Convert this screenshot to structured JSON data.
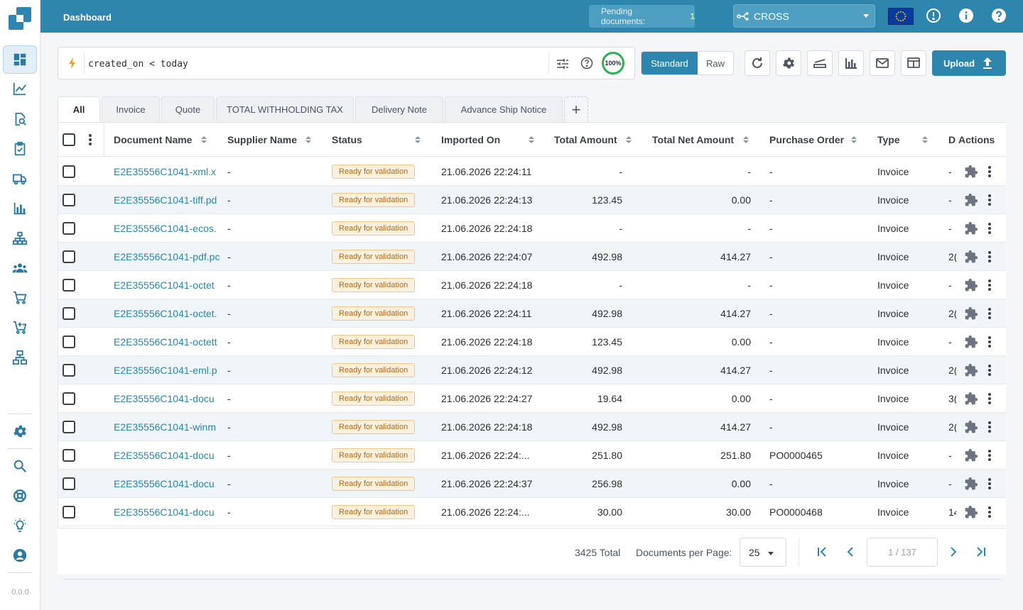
{
  "header": {
    "title": "Dashboard",
    "pending_label": "Pending documents:",
    "pending_count": "1",
    "tenant": "CROSS"
  },
  "sidebar": {
    "items": [
      "dashboard",
      "analytics",
      "document-search",
      "validation",
      "delivery",
      "reports",
      "organization",
      "users",
      "cart",
      "add-to-cart",
      "network"
    ],
    "bottom_items": [
      "settings",
      "search",
      "support",
      "ideas",
      "account"
    ],
    "version": "0.0.0"
  },
  "query": {
    "value": "created_on < today",
    "accuracy": "100%"
  },
  "view_mode": {
    "standard": "Standard",
    "raw": "Raw"
  },
  "toolbar": {
    "upload_label": "Upload"
  },
  "tabs": [
    "All",
    "Invoice",
    "Quote",
    "TOTAL WITHHOLDING TAX",
    "Delivery Note",
    "Advance Ship Notice"
  ],
  "columns": {
    "document_name": "Document Name",
    "supplier_name": "Supplier Name",
    "status": "Status",
    "imported_on": "Imported On",
    "total_amount": "Total Amount",
    "total_net_amount": "Total Net Amount",
    "purchase_order": "Purchase Order",
    "type": "Type",
    "d": "D",
    "actions": "Actions"
  },
  "rows": [
    {
      "name": "E2E35556C1041-xml.x",
      "supplier": "-",
      "status": "Ready for validation",
      "imported": "21.06.2026 22:24:11",
      "total": "-",
      "net": "-",
      "po": "-",
      "type": "Invoice",
      "d": "-"
    },
    {
      "name": "E2E35556C1041-tiff.pd",
      "supplier": "-",
      "status": "Ready for validation",
      "imported": "21.06.2026 22:24:13",
      "total": "123.45",
      "net": "0.00",
      "po": "-",
      "type": "Invoice",
      "d": "-"
    },
    {
      "name": "E2E35556C1041-ecos.",
      "supplier": "-",
      "status": "Ready for validation",
      "imported": "21.06.2026 22:24:18",
      "total": "-",
      "net": "-",
      "po": "-",
      "type": "Invoice",
      "d": "-"
    },
    {
      "name": "E2E35556C1041-pdf.pc",
      "supplier": "-",
      "status": "Ready for validation",
      "imported": "21.06.2026 22:24:07",
      "total": "492.98",
      "net": "414.27",
      "po": "-",
      "type": "Invoice",
      "d": "2("
    },
    {
      "name": "E2E35556C1041-octet",
      "supplier": "-",
      "status": "Ready for validation",
      "imported": "21.06.2026 22:24:18",
      "total": "-",
      "net": "-",
      "po": "-",
      "type": "Invoice",
      "d": "-"
    },
    {
      "name": "E2E35556C1041-octet.",
      "supplier": "-",
      "status": "Ready for validation",
      "imported": "21.06.2026 22:24:11",
      "total": "492.98",
      "net": "414.27",
      "po": "-",
      "type": "Invoice",
      "d": "2("
    },
    {
      "name": "E2E35556C1041-octett",
      "supplier": "-",
      "status": "Ready for validation",
      "imported": "21.06.2026 22:24:18",
      "total": "123.45",
      "net": "0.00",
      "po": "-",
      "type": "Invoice",
      "d": "-"
    },
    {
      "name": "E2E35556C1041-eml.p",
      "supplier": "-",
      "status": "Ready for validation",
      "imported": "21.06.2026 22:24:12",
      "total": "492.98",
      "net": "414.27",
      "po": "-",
      "type": "Invoice",
      "d": "2("
    },
    {
      "name": "E2E35556C1041-docu",
      "supplier": "-",
      "status": "Ready for validation",
      "imported": "21.06.2026 22:24:27",
      "total": "19.64",
      "net": "0.00",
      "po": "-",
      "type": "Invoice",
      "d": "3("
    },
    {
      "name": "E2E35556C1041-winm",
      "supplier": "-",
      "status": "Ready for validation",
      "imported": "21.06.2026 22:24:18",
      "total": "492.98",
      "net": "414.27",
      "po": "-",
      "type": "Invoice",
      "d": "2("
    },
    {
      "name": "E2E35556C1041-docu",
      "supplier": "-",
      "status": "Ready for validation",
      "imported": "21.06.2026 22:24:...",
      "total": "251.80",
      "net": "251.80",
      "po": "PO0000465",
      "type": "Invoice",
      "d": "-"
    },
    {
      "name": "E2E35556C1041-docu",
      "supplier": "-",
      "status": "Ready for validation",
      "imported": "21.06.2026 22:24:37",
      "total": "256.98",
      "net": "0.00",
      "po": "-",
      "type": "Invoice",
      "d": "-"
    },
    {
      "name": "E2E35556C1041-docu",
      "supplier": "-",
      "status": "Ready for validation",
      "imported": "21.06.2026 22:24:...",
      "total": "30.00",
      "net": "30.00",
      "po": "PO0000468",
      "type": "Invoice",
      "d": "14"
    }
  ],
  "footer": {
    "total": "3425 Total",
    "per_page_label": "Documents per Page:",
    "per_page": "25",
    "page": "1 / 137"
  },
  "colors": {
    "primary": "#2e86ae",
    "link": "#2a86ad",
    "badge_text": "#b3660f",
    "badge_bg": "#fdf0dd"
  }
}
